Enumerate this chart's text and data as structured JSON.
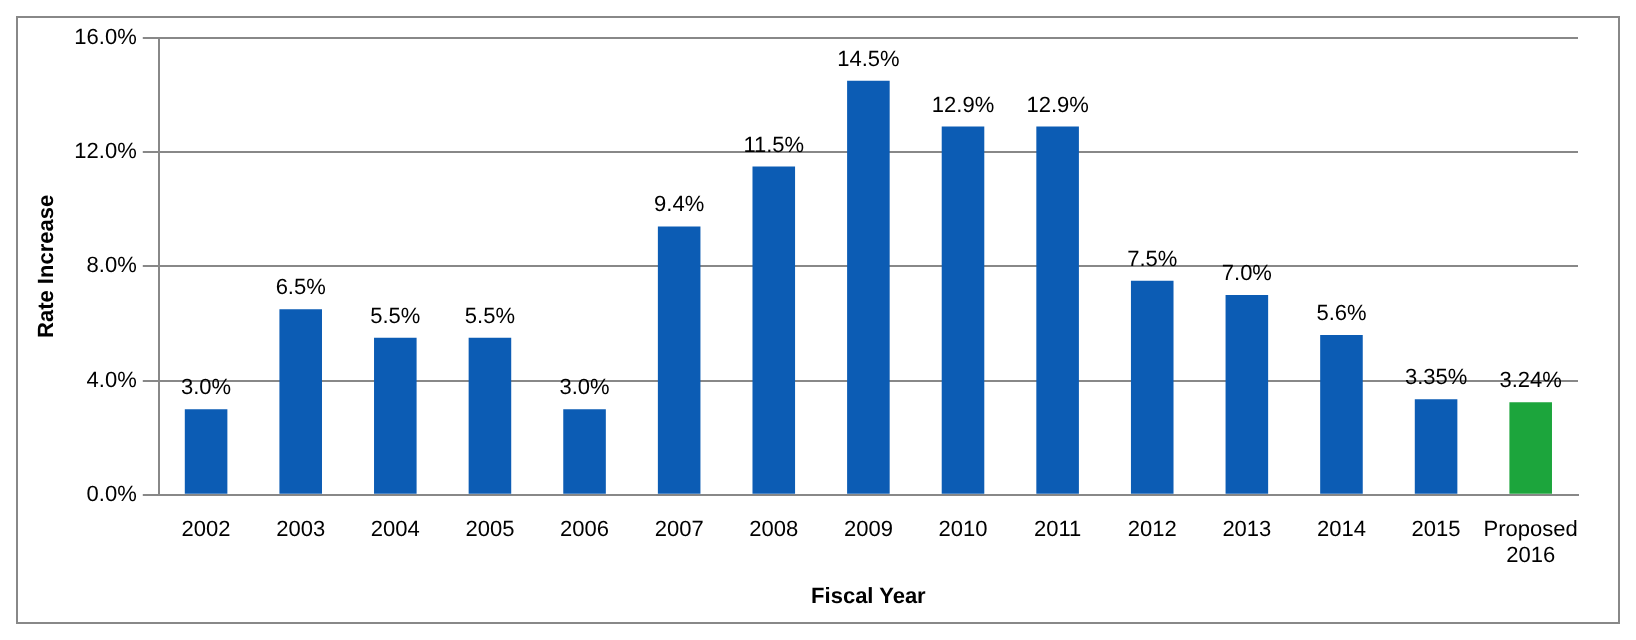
{
  "chart_data": {
    "type": "bar",
    "xlabel": "Fiscal Year",
    "ylabel": "Rate Increase",
    "categories": [
      "2002",
      "2003",
      "2004",
      "2005",
      "2006",
      "2007",
      "2008",
      "2009",
      "2010",
      "2011",
      "2012",
      "2013",
      "2014",
      "2015",
      "Proposed 2016"
    ],
    "values": [
      3.0,
      6.5,
      5.5,
      5.5,
      3.0,
      9.4,
      11.5,
      14.5,
      12.9,
      12.9,
      7.5,
      7.0,
      5.6,
      3.35,
      3.24
    ],
    "value_labels": [
      "3.0%",
      "6.5%",
      "5.5%",
      "5.5%",
      "3.0%",
      "9.4%",
      "11.5%",
      "14.5%",
      "12.9%",
      "12.9%",
      "7.5%",
      "7.0%",
      "5.6%",
      "3.35%",
      "3.24%"
    ],
    "colors": [
      "#0c5cb4",
      "#0c5cb4",
      "#0c5cb4",
      "#0c5cb4",
      "#0c5cb4",
      "#0c5cb4",
      "#0c5cb4",
      "#0c5cb4",
      "#0c5cb4",
      "#0c5cb4",
      "#0c5cb4",
      "#0c5cb4",
      "#0c5cb4",
      "#0c5cb4",
      "#1ca53c"
    ],
    "ylim": [
      0,
      16
    ],
    "yticks": [
      {
        "value": 0,
        "label": "0.0%"
      },
      {
        "value": 4,
        "label": "4.0%"
      },
      {
        "value": 8,
        "label": "8.0%"
      },
      {
        "value": 12,
        "label": "12.0%"
      },
      {
        "value": 16,
        "label": "16.0%"
      }
    ],
    "grid": "y",
    "legend": false
  }
}
